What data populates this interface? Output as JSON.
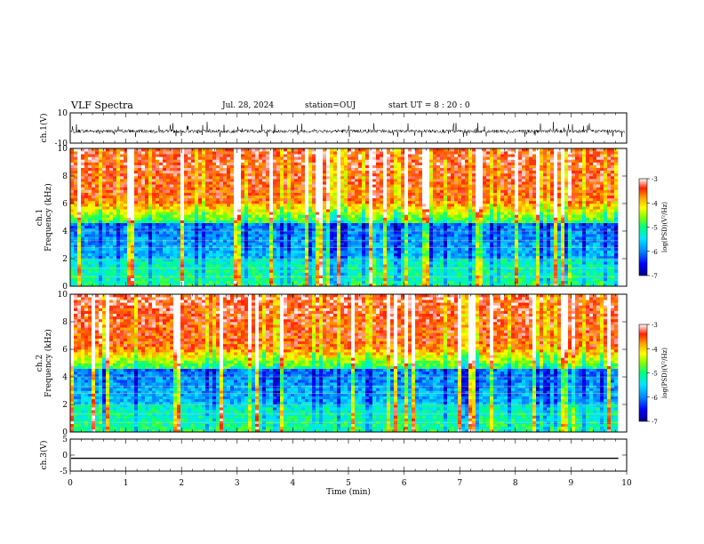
{
  "header": {
    "title": "VLF Spectra",
    "date": "Jul. 28, 2024",
    "station": "station=OUJ",
    "start": "start  UT =   8 : 20 : 0"
  },
  "chart_data": [
    {
      "type": "line",
      "panel": "ch1-waveform",
      "ylabel": "ch.1(V)",
      "ylim": [
        -10,
        10
      ],
      "yticks": [
        10,
        -10
      ],
      "xlim": [
        0,
        10
      ],
      "description_values": {
        "baseline": -2,
        "noise_range": [
          -6,
          4
        ]
      }
    },
    {
      "type": "heatmap",
      "panel": "ch1-spectrogram",
      "ylabel": "ch.1\nFrequency (kHz)",
      "ylim": [
        0,
        10
      ],
      "yticks": [
        0,
        2,
        4,
        6,
        8,
        10
      ],
      "xlim": [
        0,
        10
      ],
      "data_end_min": 9.85,
      "colorbar": {
        "label": "log(PSD)(V²/Hz)",
        "range": [
          -7,
          -3
        ],
        "ticks": [
          -3,
          -4,
          -5,
          -6,
          -7
        ]
      }
    },
    {
      "type": "heatmap",
      "panel": "ch2-spectrogram",
      "ylabel": "ch.2\nFrequency (kHz)",
      "ylim": [
        0,
        10
      ],
      "yticks": [
        0,
        2,
        4,
        6,
        8,
        10
      ],
      "xlim": [
        0,
        10
      ],
      "data_end_min": 9.85,
      "colorbar": {
        "label": "log(PSD)(V²/Hz)",
        "range": [
          -7,
          -3
        ],
        "ticks": [
          -3,
          -4,
          -5,
          -6,
          -7
        ]
      }
    },
    {
      "type": "line",
      "panel": "ch3-waveform",
      "ylabel": "ch.3(V)",
      "ylim": [
        -5,
        5
      ],
      "yticks": [
        5,
        0,
        -5
      ],
      "xlim": [
        0,
        10
      ],
      "value": -1,
      "xlabel": "Time (min)",
      "xticks": [
        0,
        1,
        2,
        3,
        4,
        5,
        6,
        7,
        8,
        9,
        10
      ]
    }
  ],
  "colors": {
    "axis": "#000000",
    "colormap": [
      "#00008b",
      "#0000ff",
      "#0088ff",
      "#00e5ff",
      "#00ff80",
      "#80ff00",
      "#ffff00",
      "#ffa500",
      "#ff2200",
      "#ffffff"
    ]
  }
}
